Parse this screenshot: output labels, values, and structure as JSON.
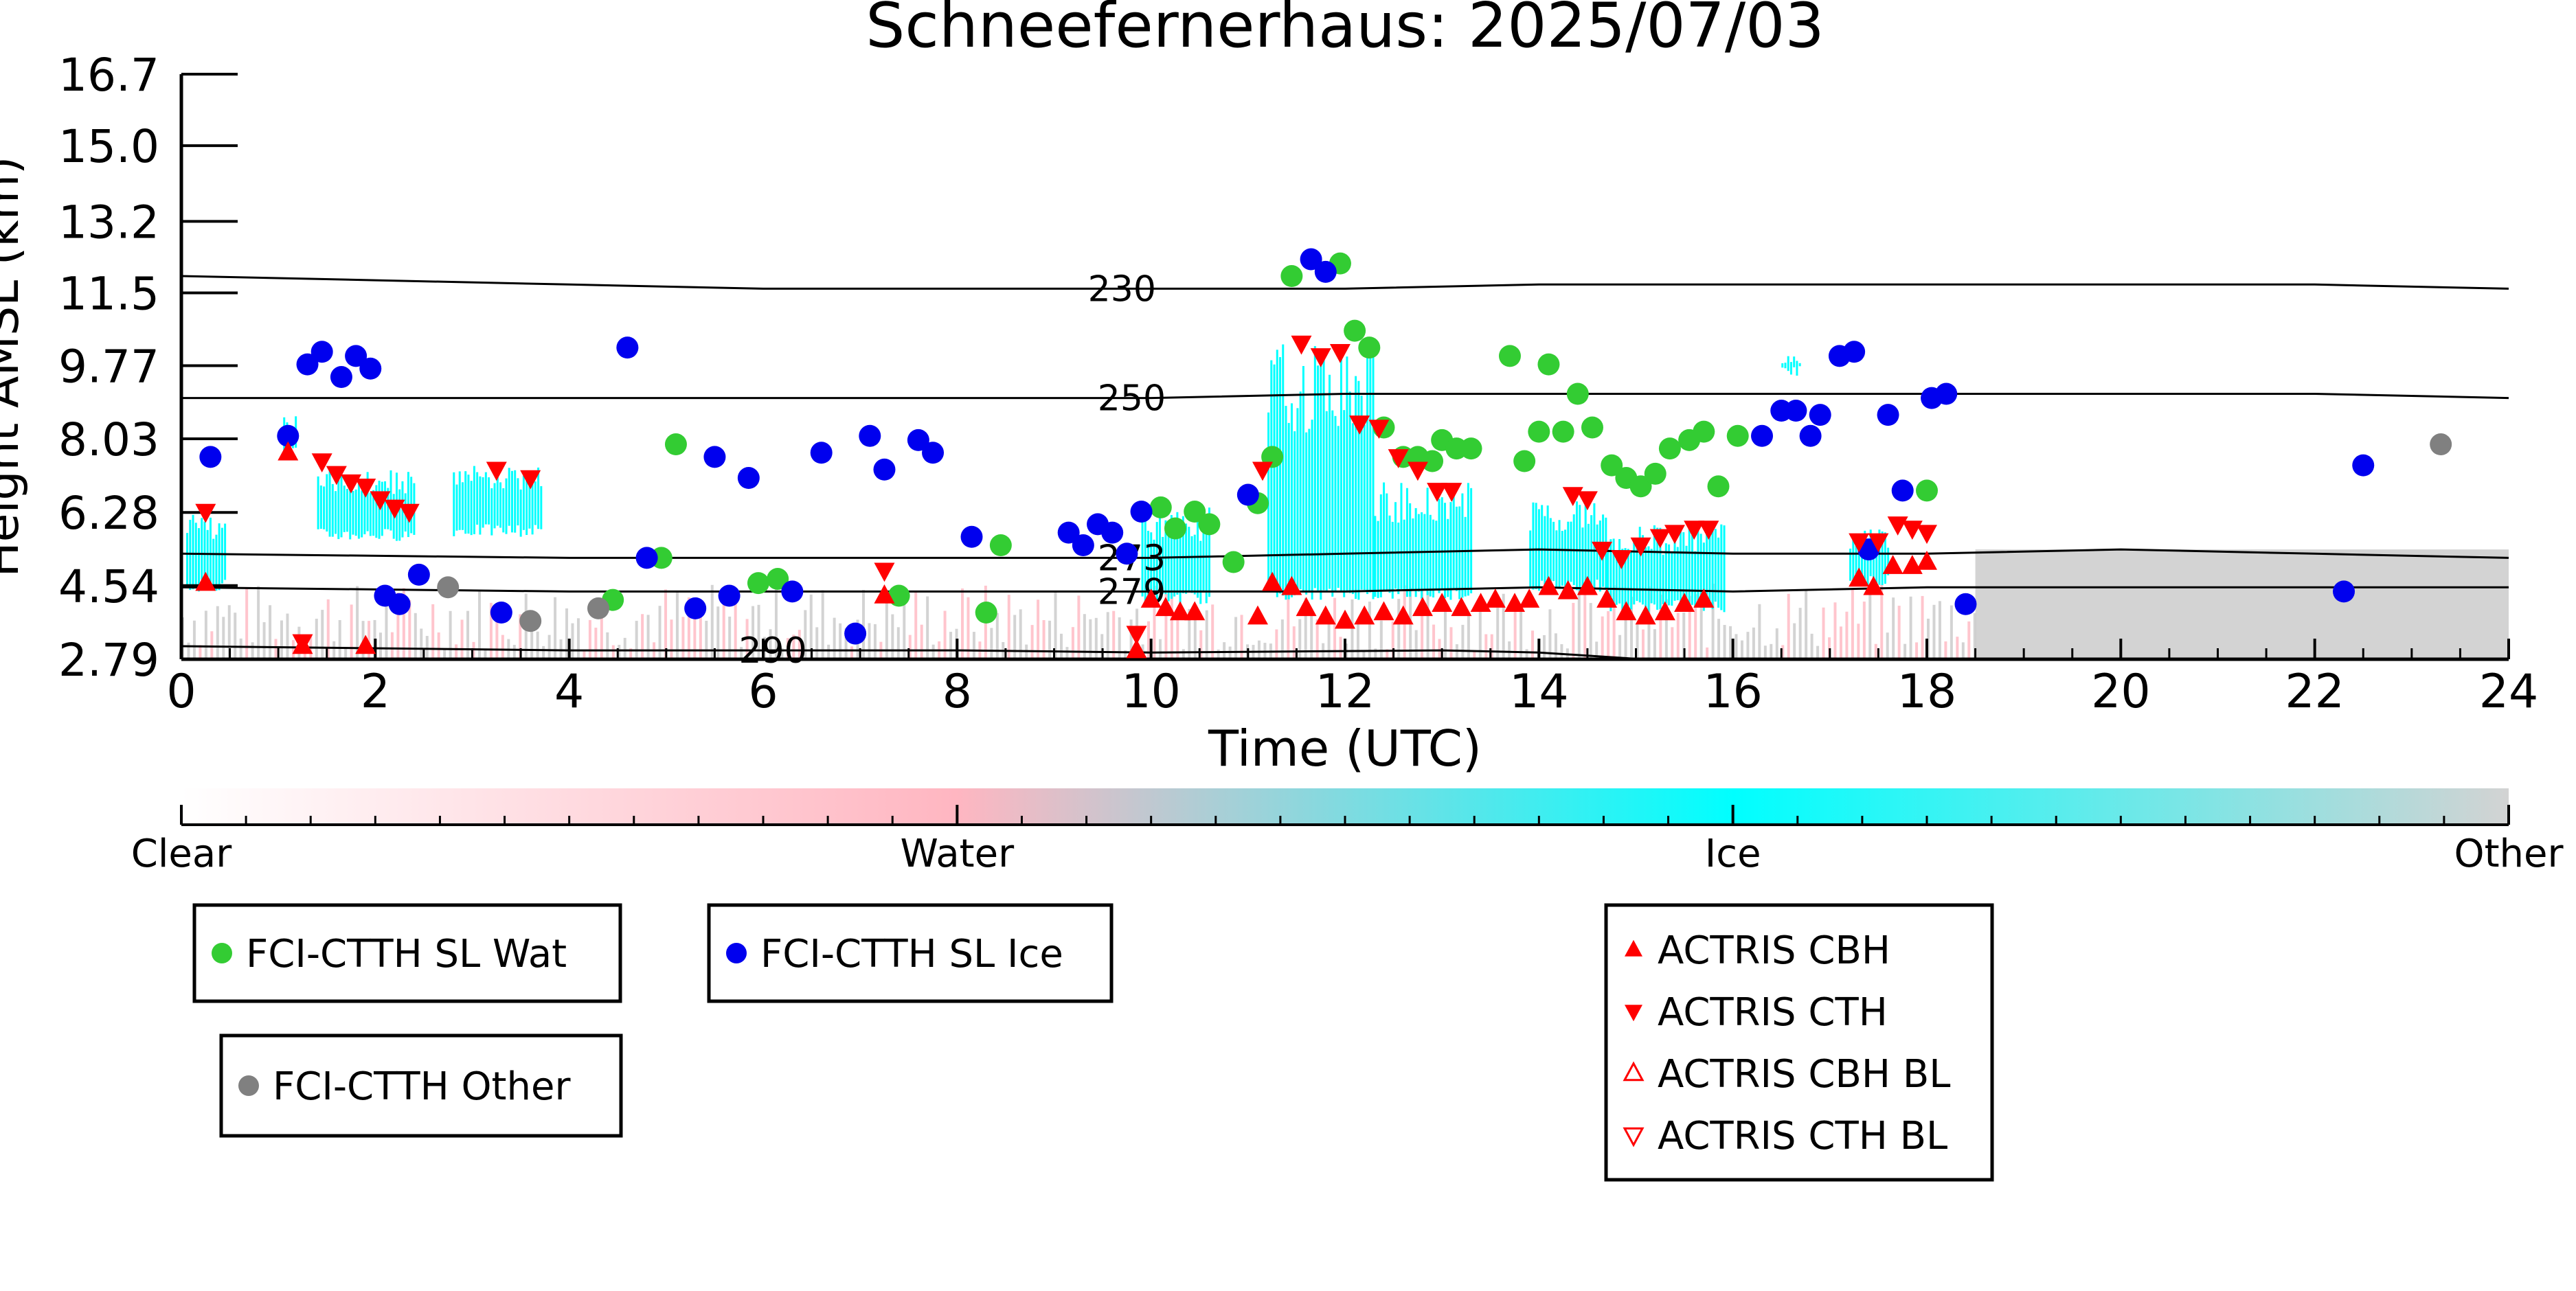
{
  "chart_data": {
    "type": "scatter",
    "title": "Schneefernerhaus: 2025/07/03",
    "xlabel": "Time (UTC)",
    "ylabel": "Height AMSL (km)",
    "xlim": [
      0,
      24
    ],
    "ylim": [
      2.79,
      16.7
    ],
    "x_ticks": [
      0,
      2,
      4,
      6,
      8,
      10,
      12,
      14,
      16,
      18,
      20,
      22,
      24
    ],
    "y_ticks": [
      2.79,
      4.54,
      6.28,
      8.03,
      9.77,
      11.5,
      13.2,
      15.0,
      16.7
    ],
    "y_tick_labels": [
      "2.79",
      "4.54",
      "6.28",
      "8.03",
      "9.77",
      "11.5",
      "13.2",
      "15.0",
      "16.7"
    ],
    "colorbar": {
      "labels": [
        "Clear",
        "Water",
        "Ice",
        "Other"
      ],
      "colors": [
        "#ffffff",
        "#ffb6c1",
        "#00ffff",
        "#d3d3d3"
      ]
    },
    "contours": [
      {
        "label": "230",
        "label_x": 9.7,
        "points": [
          [
            0,
            11.9
          ],
          [
            2,
            11.8
          ],
          [
            4,
            11.7
          ],
          [
            6,
            11.6
          ],
          [
            8,
            11.6
          ],
          [
            10,
            11.6
          ],
          [
            12,
            11.6
          ],
          [
            14,
            11.7
          ],
          [
            16,
            11.7
          ],
          [
            18,
            11.7
          ],
          [
            20,
            11.7
          ],
          [
            22,
            11.7
          ],
          [
            24,
            11.6
          ]
        ]
      },
      {
        "label": "250",
        "label_x": 9.8,
        "points": [
          [
            0,
            9.0
          ],
          [
            4,
            9.0
          ],
          [
            8,
            9.0
          ],
          [
            10,
            9.0
          ],
          [
            12,
            9.1
          ],
          [
            14,
            9.1
          ],
          [
            16,
            9.1
          ],
          [
            18,
            9.1
          ],
          [
            20,
            9.1
          ],
          [
            22,
            9.1
          ],
          [
            24,
            9.0
          ]
        ]
      },
      {
        "label": "273",
        "label_x": 9.8,
        "points": [
          [
            0,
            5.3
          ],
          [
            4,
            5.2
          ],
          [
            8,
            5.2
          ],
          [
            10,
            5.2
          ],
          [
            12,
            5.3
          ],
          [
            14,
            5.4
          ],
          [
            16,
            5.3
          ],
          [
            18,
            5.3
          ],
          [
            20,
            5.4
          ],
          [
            22,
            5.3
          ],
          [
            24,
            5.2
          ]
        ]
      },
      {
        "label": "279",
        "label_x": 9.8,
        "points": [
          [
            0,
            4.5
          ],
          [
            4,
            4.4
          ],
          [
            8,
            4.4
          ],
          [
            10,
            4.4
          ],
          [
            12,
            4.4
          ],
          [
            14,
            4.5
          ],
          [
            16,
            4.4
          ],
          [
            18,
            4.5
          ],
          [
            20,
            4.5
          ],
          [
            22,
            4.5
          ],
          [
            24,
            4.5
          ]
        ]
      },
      {
        "label": "290",
        "label_x": 6.1,
        "points": [
          [
            0,
            3.1
          ],
          [
            4,
            3.0
          ],
          [
            6,
            3.0
          ],
          [
            8,
            3.0
          ],
          [
            10,
            2.95
          ],
          [
            13,
            3.0
          ],
          [
            14,
            2.95
          ],
          [
            15,
            2.8
          ]
        ]
      }
    ],
    "series": [
      {
        "name": "FCI-CTTH SL Wat",
        "marker": "circle",
        "color": "#33cc33",
        "points": [
          [
            4.45,
            4.2
          ],
          [
            4.95,
            5.2
          ],
          [
            5.1,
            7.9
          ],
          [
            5.95,
            4.6
          ],
          [
            6.15,
            4.7
          ],
          [
            7.4,
            4.3
          ],
          [
            8.3,
            3.9
          ],
          [
            8.45,
            5.5
          ],
          [
            10.1,
            6.4
          ],
          [
            10.25,
            5.9
          ],
          [
            10.45,
            6.3
          ],
          [
            10.6,
            6.0
          ],
          [
            10.85,
            5.1
          ],
          [
            11.1,
            6.5
          ],
          [
            11.25,
            7.6
          ],
          [
            11.45,
            11.9
          ],
          [
            11.95,
            12.2
          ],
          [
            12.1,
            10.6
          ],
          [
            12.25,
            10.2
          ],
          [
            12.4,
            8.3
          ],
          [
            12.6,
            7.6
          ],
          [
            12.75,
            7.6
          ],
          [
            12.9,
            7.5
          ],
          [
            13.0,
            8.0
          ],
          [
            13.15,
            7.8
          ],
          [
            13.3,
            7.8
          ],
          [
            13.7,
            10.0
          ],
          [
            13.85,
            7.5
          ],
          [
            14.0,
            8.2
          ],
          [
            14.1,
            9.8
          ],
          [
            14.25,
            8.2
          ],
          [
            14.4,
            9.1
          ],
          [
            14.55,
            8.3
          ],
          [
            14.75,
            7.4
          ],
          [
            14.9,
            7.1
          ],
          [
            15.05,
            6.9
          ],
          [
            15.2,
            7.2
          ],
          [
            15.35,
            7.8
          ],
          [
            15.55,
            8.0
          ],
          [
            15.7,
            8.2
          ],
          [
            15.85,
            6.9
          ],
          [
            16.05,
            8.1
          ],
          [
            18.0,
            6.8
          ]
        ]
      },
      {
        "name": "FCI-CTTH SL Ice",
        "marker": "circle",
        "color": "#0000ee",
        "points": [
          [
            0.3,
            7.6
          ],
          [
            1.1,
            8.1
          ],
          [
            1.3,
            9.8
          ],
          [
            1.45,
            10.1
          ],
          [
            1.65,
            9.5
          ],
          [
            1.8,
            10.0
          ],
          [
            1.95,
            9.7
          ],
          [
            2.1,
            4.3
          ],
          [
            2.25,
            4.1
          ],
          [
            2.45,
            4.8
          ],
          [
            3.3,
            3.9
          ],
          [
            4.6,
            10.2
          ],
          [
            4.8,
            5.2
          ],
          [
            5.3,
            4.0
          ],
          [
            5.5,
            7.6
          ],
          [
            5.65,
            4.3
          ],
          [
            5.85,
            7.1
          ],
          [
            6.3,
            4.4
          ],
          [
            6.6,
            7.7
          ],
          [
            6.95,
            3.4
          ],
          [
            7.1,
            8.1
          ],
          [
            7.25,
            7.3
          ],
          [
            7.6,
            8.0
          ],
          [
            7.75,
            7.7
          ],
          [
            8.15,
            5.7
          ],
          [
            9.15,
            5.8
          ],
          [
            9.3,
            5.5
          ],
          [
            9.45,
            6.0
          ],
          [
            9.6,
            5.8
          ],
          [
            9.75,
            5.3
          ],
          [
            9.9,
            6.3
          ],
          [
            11.0,
            6.7
          ],
          [
            11.65,
            12.3
          ],
          [
            11.8,
            12.0
          ],
          [
            16.3,
            8.1
          ],
          [
            16.5,
            8.7
          ],
          [
            16.65,
            8.7
          ],
          [
            16.8,
            8.1
          ],
          [
            16.9,
            8.6
          ],
          [
            17.1,
            10.0
          ],
          [
            17.25,
            10.1
          ],
          [
            17.4,
            5.4
          ],
          [
            17.6,
            8.6
          ],
          [
            17.75,
            6.8
          ],
          [
            18.05,
            9.0
          ],
          [
            18.2,
            9.1
          ],
          [
            18.4,
            4.1
          ],
          [
            22.3,
            4.4
          ],
          [
            22.5,
            7.4
          ]
        ]
      },
      {
        "name": "FCI-CTTH Other",
        "marker": "circle",
        "color": "#808080",
        "points": [
          [
            2.75,
            4.5
          ],
          [
            3.6,
            3.7
          ],
          [
            4.3,
            4.0
          ],
          [
            23.3,
            7.9
          ]
        ]
      },
      {
        "name": "ACTRIS CBH",
        "marker": "triangle-up",
        "color": "#ff0000",
        "points": [
          [
            0.25,
            4.6
          ],
          [
            1.1,
            7.7
          ],
          [
            1.25,
            3.1
          ],
          [
            1.9,
            3.1
          ],
          [
            7.25,
            4.3
          ],
          [
            9.85,
            3.0
          ],
          [
            10.0,
            4.2
          ],
          [
            10.15,
            4.0
          ],
          [
            10.3,
            3.9
          ],
          [
            10.45,
            3.9
          ],
          [
            11.1,
            3.8
          ],
          [
            11.25,
            4.6
          ],
          [
            11.45,
            4.5
          ],
          [
            11.6,
            4.0
          ],
          [
            11.8,
            3.8
          ],
          [
            12.0,
            3.7
          ],
          [
            12.2,
            3.8
          ],
          [
            12.4,
            3.9
          ],
          [
            12.6,
            3.8
          ],
          [
            12.8,
            4.0
          ],
          [
            13.0,
            4.1
          ],
          [
            13.2,
            4.0
          ],
          [
            13.4,
            4.1
          ],
          [
            13.55,
            4.2
          ],
          [
            13.75,
            4.1
          ],
          [
            13.9,
            4.2
          ],
          [
            14.1,
            4.5
          ],
          [
            14.3,
            4.4
          ],
          [
            14.5,
            4.5
          ],
          [
            14.7,
            4.2
          ],
          [
            14.9,
            3.9
          ],
          [
            15.1,
            3.8
          ],
          [
            15.3,
            3.9
          ],
          [
            15.5,
            4.1
          ],
          [
            15.7,
            4.2
          ],
          [
            17.3,
            4.7
          ],
          [
            17.45,
            4.5
          ],
          [
            17.65,
            5.0
          ],
          [
            17.85,
            5.0
          ],
          [
            18.0,
            5.1
          ]
        ]
      },
      {
        "name": "ACTRIS CTH",
        "marker": "triangle-down",
        "color": "#ff0000",
        "points": [
          [
            0.25,
            6.3
          ],
          [
            1.25,
            3.2
          ],
          [
            1.45,
            7.5
          ],
          [
            1.6,
            7.2
          ],
          [
            1.75,
            7.0
          ],
          [
            1.9,
            6.9
          ],
          [
            2.05,
            6.6
          ],
          [
            2.2,
            6.4
          ],
          [
            2.35,
            6.3
          ],
          [
            3.25,
            7.3
          ],
          [
            3.6,
            7.1
          ],
          [
            7.25,
            4.9
          ],
          [
            9.85,
            3.4
          ],
          [
            11.15,
            7.3
          ],
          [
            11.55,
            10.3
          ],
          [
            11.75,
            10.0
          ],
          [
            11.95,
            10.1
          ],
          [
            12.15,
            8.4
          ],
          [
            12.35,
            8.3
          ],
          [
            12.55,
            7.6
          ],
          [
            12.75,
            7.3
          ],
          [
            12.95,
            6.8
          ],
          [
            13.1,
            6.8
          ],
          [
            14.35,
            6.7
          ],
          [
            14.5,
            6.6
          ],
          [
            14.65,
            5.4
          ],
          [
            14.85,
            5.2
          ],
          [
            15.05,
            5.5
          ],
          [
            15.25,
            5.7
          ],
          [
            15.4,
            5.8
          ],
          [
            15.6,
            5.9
          ],
          [
            15.75,
            5.9
          ],
          [
            17.3,
            5.6
          ],
          [
            17.5,
            5.6
          ],
          [
            17.7,
            6.0
          ],
          [
            17.85,
            5.9
          ],
          [
            18.0,
            5.8
          ]
        ]
      }
    ],
    "legends": [
      {
        "entries": [
          "FCI-CTTH SL Wat"
        ]
      },
      {
        "entries": [
          "FCI-CTTH SL Ice"
        ]
      },
      {
        "entries": [
          "FCI-CTTH Other"
        ]
      },
      {
        "entries": [
          "ACTRIS CBH",
          "ACTRIS CTH",
          "ACTRIS CBH BL",
          "ACTRIS CTH BL"
        ]
      }
    ],
    "legend_styles": {
      "FCI-CTTH SL Wat": {
        "marker": "circle",
        "color": "#33cc33",
        "filled": true
      },
      "FCI-CTTH SL Ice": {
        "marker": "circle",
        "color": "#0000ee",
        "filled": true
      },
      "FCI-CTTH Other": {
        "marker": "circle",
        "color": "#808080",
        "filled": true
      },
      "ACTRIS CBH": {
        "marker": "triangle-up",
        "color": "#ff0000",
        "filled": true
      },
      "ACTRIS CTH": {
        "marker": "triangle-down",
        "color": "#ff0000",
        "filled": true
      },
      "ACTRIS CBH BL": {
        "marker": "triangle-up",
        "color": "#ff0000",
        "filled": false
      },
      "ACTRIS CTH BL": {
        "marker": "triangle-down",
        "color": "#ff0000",
        "filled": false
      }
    }
  }
}
